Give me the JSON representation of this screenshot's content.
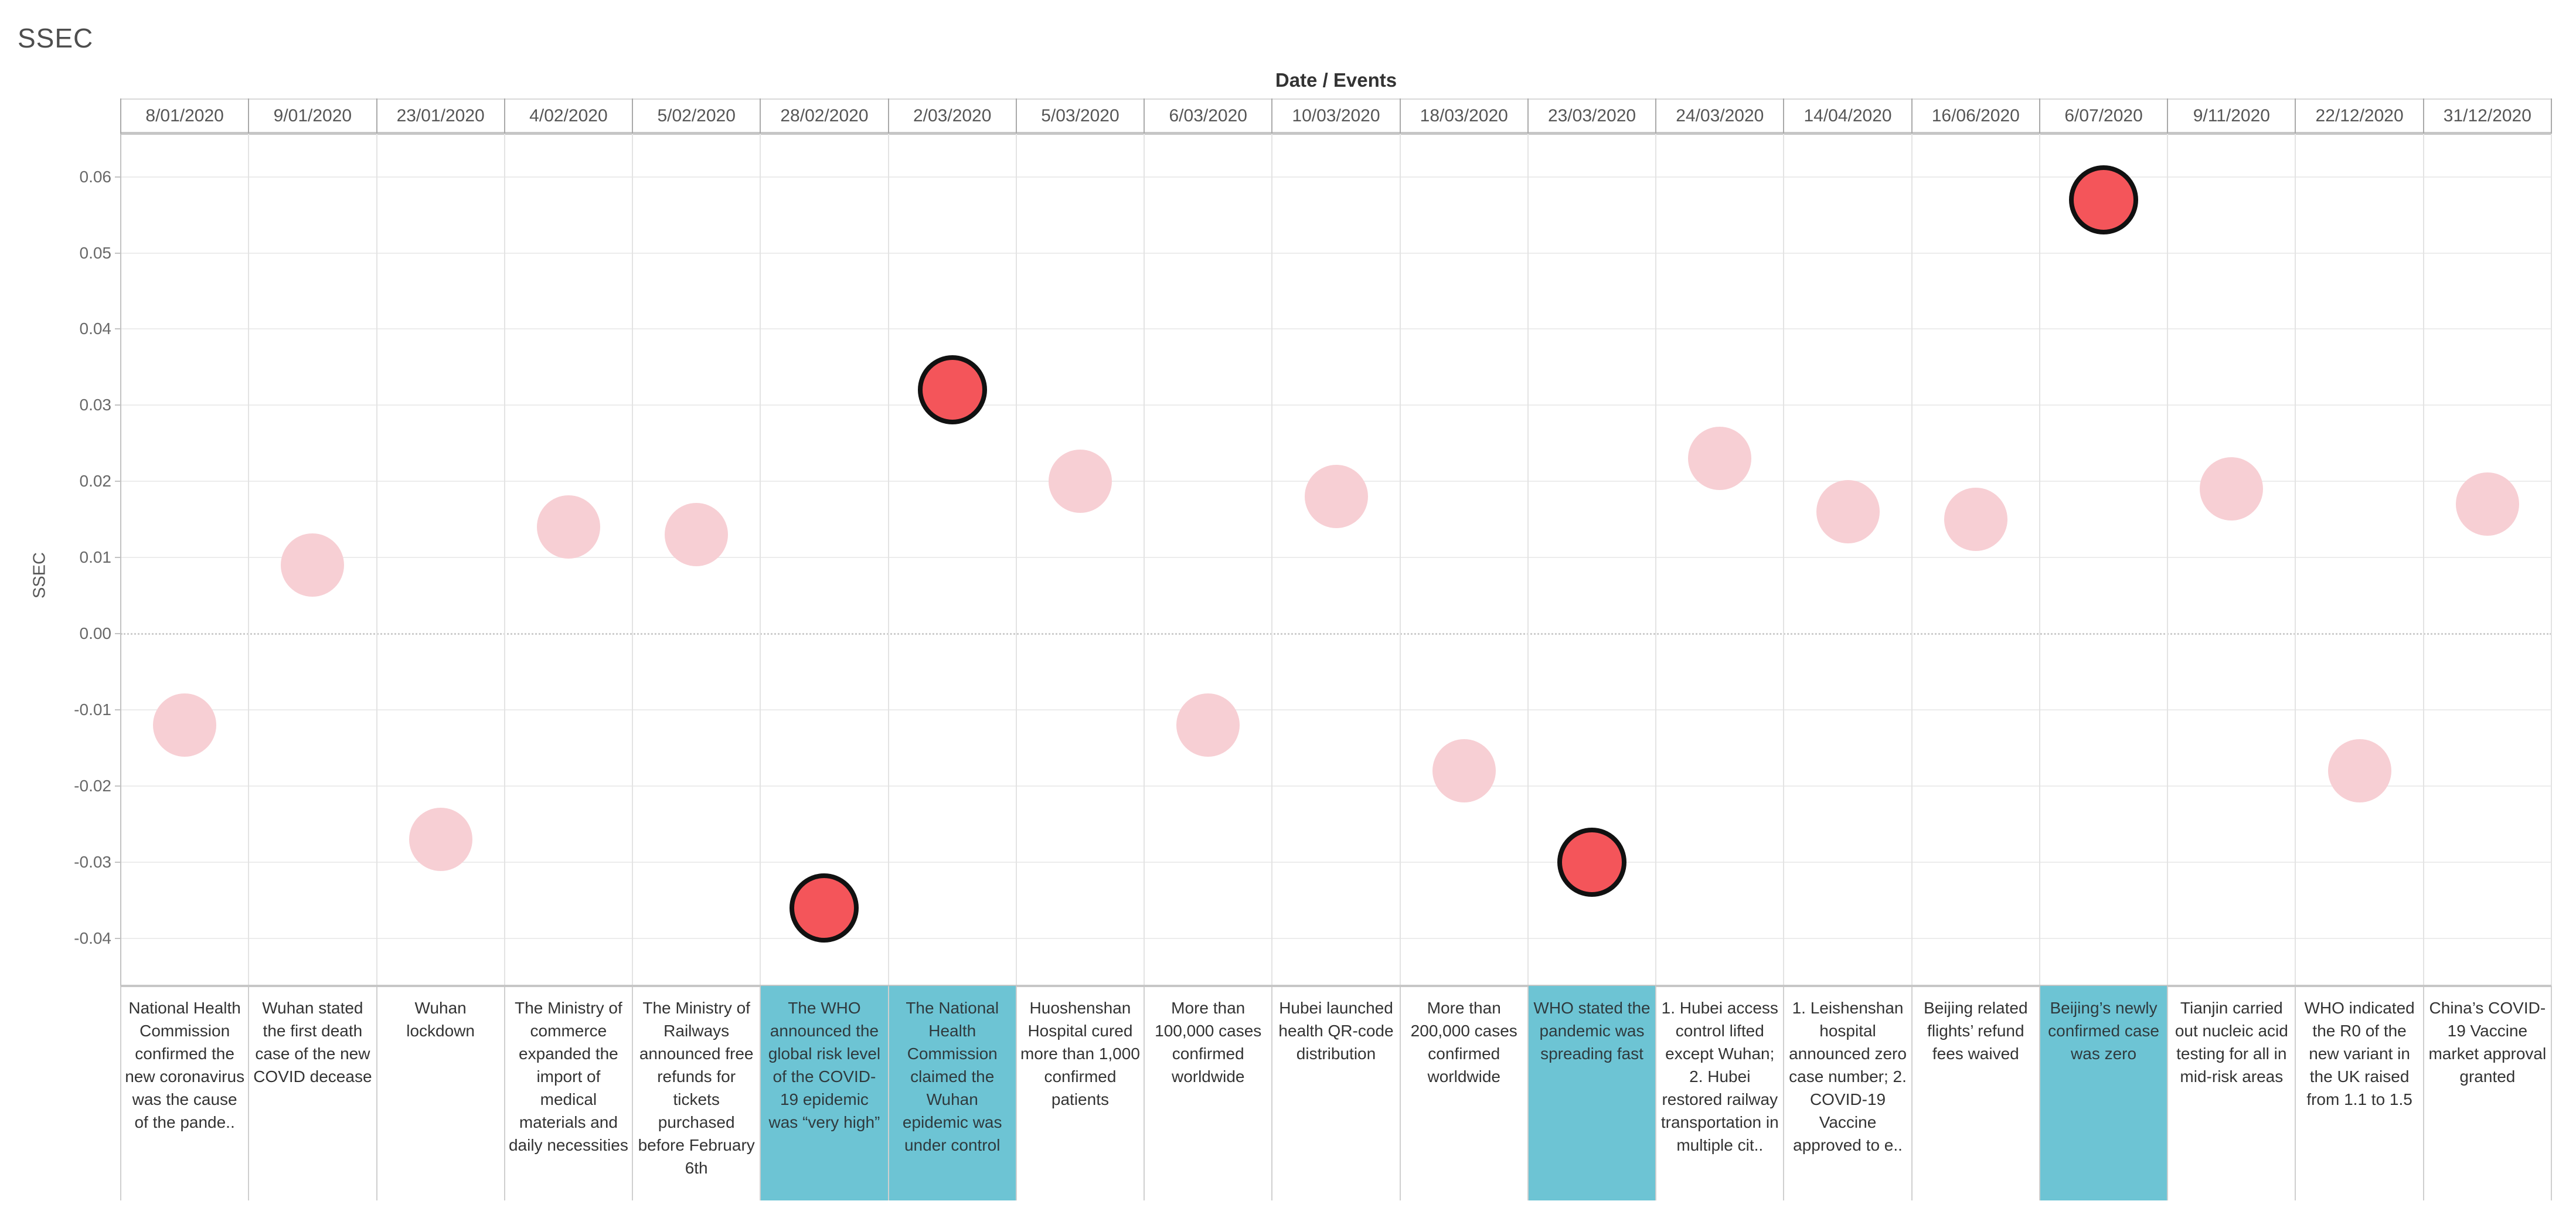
{
  "page_title": "SSEC",
  "header": {
    "column_group_label": "Date / Events"
  },
  "y_axis": {
    "label": "SSEC",
    "tick_labels": [
      "0.06",
      "0.05",
      "0.04",
      "0.03",
      "0.02",
      "0.01",
      "0.00",
      "-0.01",
      "-0.02",
      "-0.03",
      "-0.04"
    ]
  },
  "colors": {
    "dot_normal": "#f7cfd4",
    "dot_highlighted_fill": "#f4555a",
    "dot_highlighted_stroke": "#111111",
    "event_highlight_background": "#6dc4d4",
    "gridline": "#ececec",
    "text_primary": "#333333",
    "text_secondary": "#565656"
  },
  "chart_data": {
    "type": "scatter",
    "title": "SSEC",
    "xlabel": "Date / Events",
    "ylabel": "SSEC",
    "ylim": [
      -0.0463,
      0.0657
    ],
    "y_ticks": [
      0.06,
      0.05,
      0.04,
      0.03,
      0.02,
      0.01,
      0.0,
      -0.01,
      -0.02,
      -0.03,
      -0.04
    ],
    "grid": true,
    "legend": "none",
    "points": [
      {
        "date": "8/01/2020",
        "value": -0.012,
        "highlighted": false,
        "event": "National Health Commission confirmed the new coronavirus was the cause of the pande.."
      },
      {
        "date": "9/01/2020",
        "value": 0.009,
        "highlighted": false,
        "event": "Wuhan stated the first death case of the new COVID decease"
      },
      {
        "date": "23/01/2020",
        "value": -0.027,
        "highlighted": false,
        "event": "Wuhan lockdown"
      },
      {
        "date": "4/02/2020",
        "value": 0.014,
        "highlighted": false,
        "event": "The Ministry of commerce expanded the import of medical materials and daily necessities"
      },
      {
        "date": "5/02/2020",
        "value": 0.013,
        "highlighted": false,
        "event": "The Ministry of Railways announced free refunds for tickets purchased before February 6th"
      },
      {
        "date": "28/02/2020",
        "value": -0.036,
        "highlighted": true,
        "event": "The WHO announced the global risk level of the COVID-19 epidemic was “very high”"
      },
      {
        "date": "2/03/2020",
        "value": 0.032,
        "highlighted": true,
        "event": "The National Health Commission claimed the Wuhan epidemic was under control"
      },
      {
        "date": "5/03/2020",
        "value": 0.02,
        "highlighted": false,
        "event": "Huoshenshan Hospital cured more than 1,000 confirmed patients"
      },
      {
        "date": "6/03/2020",
        "value": -0.012,
        "highlighted": false,
        "event": "More than 100,000 cases confirmed worldwide"
      },
      {
        "date": "10/03/2020",
        "value": 0.018,
        "highlighted": false,
        "event": "Hubei launched health QR-code distribution"
      },
      {
        "date": "18/03/2020",
        "value": -0.018,
        "highlighted": false,
        "event": "More than 200,000 cases confirmed worldwide"
      },
      {
        "date": "23/03/2020",
        "value": -0.03,
        "highlighted": true,
        "event": "WHO stated the pandemic was spreading fast"
      },
      {
        "date": "24/03/2020",
        "value": 0.023,
        "highlighted": false,
        "event": "1. Hubei access control lifted except Wuhan; 2. Hubei restored railway transportation in multiple cit.."
      },
      {
        "date": "14/04/2020",
        "value": 0.016,
        "highlighted": false,
        "event": "1. Leishenshan hospital announced zero case number; 2. COVID-19 Vaccine approved to e.."
      },
      {
        "date": "16/06/2020",
        "value": 0.015,
        "highlighted": false,
        "event": "Beijing related flights’ refund fees waived"
      },
      {
        "date": "6/07/2020",
        "value": 0.057,
        "highlighted": true,
        "event": "Beijing’s newly confirmed case was zero"
      },
      {
        "date": "9/11/2020",
        "value": 0.019,
        "highlighted": false,
        "event": "Tianjin carried out nucleic acid testing for all in mid-risk areas"
      },
      {
        "date": "22/12/2020",
        "value": -0.018,
        "highlighted": false,
        "event": "WHO indicated the R0 of the new variant in the UK raised from 1.1 to 1.5"
      },
      {
        "date": "31/12/2020",
        "value": 0.017,
        "highlighted": false,
        "event": "China’s COVID-19 Vaccine market approval granted"
      }
    ]
  }
}
